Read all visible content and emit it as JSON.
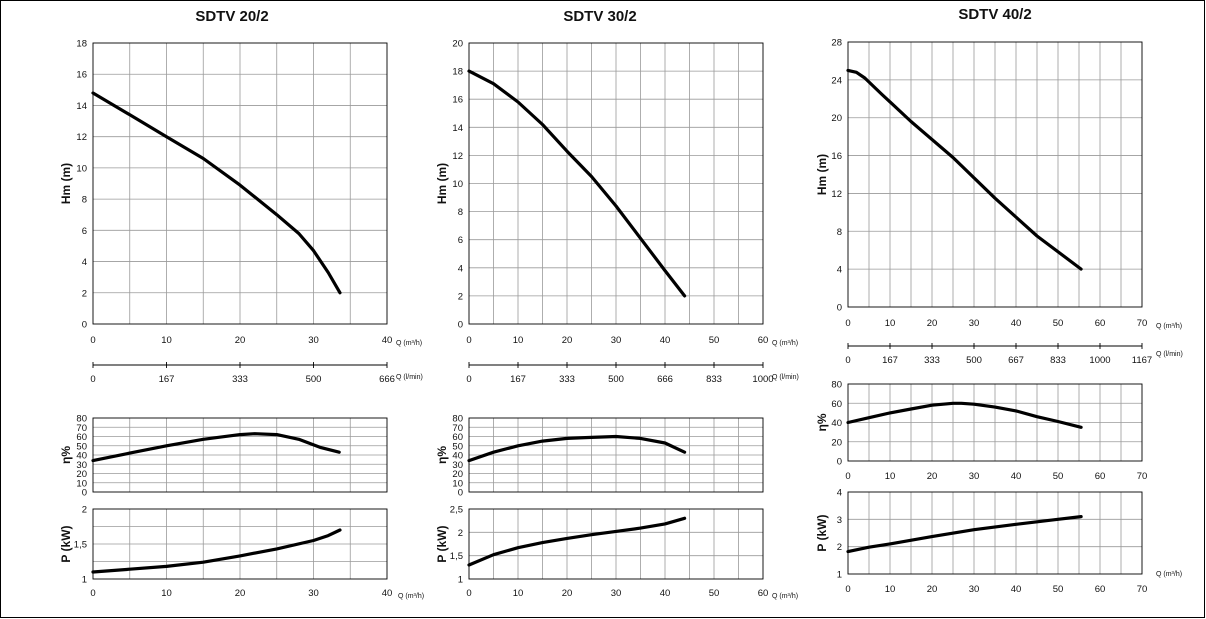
{
  "chart_data": [
    {
      "id": "sdtv20",
      "type": "line",
      "title": "SDTV 20/2",
      "xlabel": "Q (m³/h)",
      "x2label": "Q (l/min)",
      "x2_ticks": [
        "0",
        "167",
        "333",
        "500",
        "666"
      ],
      "panels": [
        {
          "key": "head",
          "ylabel": "Hm   (m)",
          "xlim": [
            0,
            40
          ],
          "x_ticks": [
            "0",
            "10",
            "20",
            "30",
            "40"
          ],
          "ylim": [
            0,
            18
          ],
          "y_ticks": [
            "0",
            "2",
            "4",
            "6",
            "8",
            "10",
            "12",
            "14",
            "16",
            "18"
          ],
          "series": [
            {
              "x": [
                0,
                5,
                10,
                15,
                20,
                25,
                28,
                30,
                32,
                33.6
              ],
              "y": [
                14.8,
                13.4,
                12.0,
                10.6,
                8.9,
                7.0,
                5.8,
                4.7,
                3.3,
                2.0
              ]
            }
          ]
        },
        {
          "key": "eff",
          "ylabel": "η%",
          "xlim": [
            0,
            40
          ],
          "x_ticks": [],
          "ylim": [
            0,
            80
          ],
          "y_ticks": [
            "0",
            "10",
            "20",
            "30",
            "40",
            "50",
            "60",
            "70",
            "80"
          ],
          "series": [
            {
              "x": [
                0,
                5,
                10,
                15,
                20,
                22,
                25,
                28,
                31,
                33.5
              ],
              "y": [
                34,
                42,
                50,
                57,
                62,
                63,
                62,
                57,
                48,
                43
              ]
            }
          ]
        },
        {
          "key": "power",
          "ylabel": "P   (kW)",
          "xlim": [
            0,
            40
          ],
          "x_ticks": [
            "0",
            "10",
            "20",
            "30",
            "40"
          ],
          "xlabel": "Q (m³/h)",
          "ylim": [
            1,
            2
          ],
          "y_ticks": [
            "1",
            "",
            "1,5",
            "",
            "2"
          ],
          "series": [
            {
              "x": [
                0,
                5,
                10,
                15,
                20,
                25,
                30,
                32,
                33.6
              ],
              "y": [
                1.1,
                1.14,
                1.18,
                1.24,
                1.33,
                1.43,
                1.55,
                1.62,
                1.7
              ]
            }
          ]
        }
      ]
    },
    {
      "id": "sdtv30",
      "type": "line",
      "title": "SDTV 30/2",
      "xlabel": "Q (m³/h)",
      "x2label": "Q (l/min)",
      "x2_ticks": [
        "0",
        "167",
        "333",
        "500",
        "666",
        "833",
        "1000"
      ],
      "panels": [
        {
          "key": "head",
          "ylabel": "Hm   (m)",
          "xlim": [
            0,
            60
          ],
          "x_ticks": [
            "0",
            "10",
            "20",
            "30",
            "40",
            "50",
            "60"
          ],
          "ylim": [
            0,
            20
          ],
          "y_ticks": [
            "0",
            "2",
            "4",
            "6",
            "8",
            "10",
            "12",
            "14",
            "16",
            "18",
            "20"
          ],
          "series": [
            {
              "x": [
                0,
                5,
                10,
                15,
                20,
                25,
                30,
                35,
                40,
                44
              ],
              "y": [
                18.0,
                17.1,
                15.8,
                14.2,
                12.3,
                10.5,
                8.4,
                6.1,
                3.8,
                2.0
              ]
            }
          ]
        },
        {
          "key": "eff",
          "ylabel": "η%",
          "xlim": [
            0,
            60
          ],
          "x_ticks": [],
          "ylim": [
            0,
            80
          ],
          "y_ticks": [
            "0",
            "10",
            "20",
            "30",
            "40",
            "50",
            "60",
            "70",
            "80"
          ],
          "series": [
            {
              "x": [
                0,
                5,
                10,
                15,
                20,
                25,
                30,
                35,
                40,
                44
              ],
              "y": [
                34,
                43,
                50,
                55,
                58,
                59,
                60,
                58,
                53,
                43
              ]
            }
          ]
        },
        {
          "key": "power",
          "ylabel": "P   (kW)",
          "xlim": [
            0,
            60
          ],
          "x_ticks": [
            "0",
            "10",
            "20",
            "30",
            "40",
            "50",
            "60"
          ],
          "xlabel": "Q (m³/h)",
          "ylim": [
            1,
            2.5
          ],
          "y_ticks": [
            "1",
            "1,5",
            "2",
            "2,5"
          ],
          "series": [
            {
              "x": [
                0,
                5,
                10,
                15,
                20,
                25,
                30,
                35,
                40,
                44
              ],
              "y": [
                1.3,
                1.52,
                1.67,
                1.78,
                1.87,
                1.95,
                2.02,
                2.09,
                2.18,
                2.3
              ]
            }
          ]
        }
      ]
    },
    {
      "id": "sdtv40",
      "type": "line",
      "title": "SDTV 40/2",
      "xlabel": "Q (m³/h)",
      "x2label": "Q (l/min)",
      "x2_ticks": [
        "0",
        "167",
        "333",
        "500",
        "667",
        "833",
        "1000",
        "1167"
      ],
      "panels": [
        {
          "key": "head",
          "ylabel": "Hm   (m)",
          "xlim": [
            0,
            70
          ],
          "x_ticks": [
            "0",
            "10",
            "20",
            "30",
            "40",
            "50",
            "60",
            "70"
          ],
          "ylim": [
            0,
            28
          ],
          "y_ticks": [
            "0",
            "4",
            "8",
            "12",
            "16",
            "20",
            "24",
            "28"
          ],
          "series": [
            {
              "x": [
                0,
                2,
                4,
                8,
                15,
                25,
                35,
                45,
                55.5
              ],
              "y": [
                25.0,
                24.8,
                24.2,
                22.5,
                19.6,
                15.8,
                11.5,
                7.5,
                4.0
              ]
            }
          ]
        },
        {
          "key": "eff",
          "ylabel": "η%",
          "xlim": [
            0,
            70
          ],
          "x_ticks": [
            "0",
            "10",
            "20",
            "30",
            "40",
            "50",
            "60",
            "70"
          ],
          "ylim": [
            0,
            80
          ],
          "y_ticks": [
            "0",
            "20",
            "40",
            "60",
            "80"
          ],
          "series": [
            {
              "x": [
                0,
                5,
                10,
                15,
                20,
                25,
                27,
                30,
                35,
                40,
                45,
                50,
                55.5
              ],
              "y": [
                40,
                45,
                50,
                54,
                58,
                60,
                60,
                59,
                56,
                52,
                46,
                41,
                35
              ]
            }
          ]
        },
        {
          "key": "power",
          "ylabel": "P   (kW)",
          "xlim": [
            0,
            70
          ],
          "x_ticks": [
            "0",
            "10",
            "20",
            "30",
            "40",
            "50",
            "60",
            "70"
          ],
          "xlabel": "Q (m³/h)",
          "ylim": [
            1,
            4
          ],
          "y_ticks": [
            "1",
            "2",
            "3",
            "4"
          ],
          "series": [
            {
              "x": [
                0,
                5,
                10,
                20,
                30,
                40,
                50,
                55.5
              ],
              "y": [
                1.82,
                1.98,
                2.1,
                2.37,
                2.62,
                2.82,
                3.0,
                3.1
              ]
            }
          ]
        }
      ]
    }
  ]
}
